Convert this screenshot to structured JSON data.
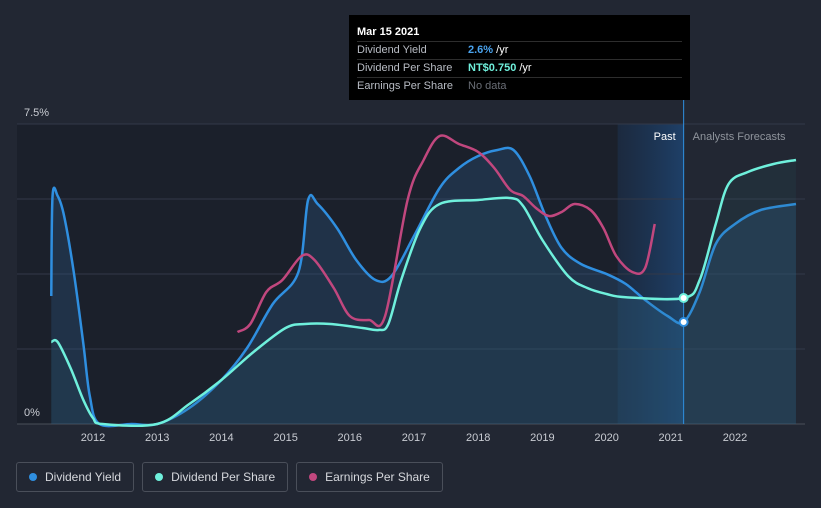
{
  "chart_data": {
    "type": "line",
    "title": "",
    "xlabel": "",
    "ylabel": "",
    "x_ticks": [
      "2012",
      "2013",
      "2014",
      "2015",
      "2016",
      "2017",
      "2018",
      "2019",
      "2020",
      "2021",
      "2022"
    ],
    "y_tick_labels": [
      "7.5%",
      "0%"
    ],
    "ylim": [
      0,
      7.5
    ],
    "xlim": [
      2011.3,
      2022.95
    ],
    "cursor_x": 2021.2,
    "past_label": "Past",
    "forecast_label": "Analysts Forecasts",
    "series": [
      {
        "name": "Dividend Yield",
        "color": "#2f8fe0",
        "axis": "yield",
        "points": [
          [
            2011.35,
            3.2
          ],
          [
            2011.37,
            5.7
          ],
          [
            2011.45,
            5.7
          ],
          [
            2011.55,
            5.2
          ],
          [
            2011.7,
            3.8
          ],
          [
            2011.85,
            2.0
          ],
          [
            2011.95,
            0.7
          ],
          [
            2012.1,
            0.0
          ],
          [
            2012.6,
            0.0
          ],
          [
            2013.0,
            0.0
          ],
          [
            2013.5,
            0.4
          ],
          [
            2014.0,
            1.1
          ],
          [
            2014.4,
            1.9
          ],
          [
            2014.8,
            3.0
          ],
          [
            2015.2,
            3.8
          ],
          [
            2015.35,
            5.6
          ],
          [
            2015.5,
            5.5
          ],
          [
            2015.8,
            4.9
          ],
          [
            2016.1,
            4.1
          ],
          [
            2016.4,
            3.6
          ],
          [
            2016.65,
            3.7
          ],
          [
            2017.0,
            4.7
          ],
          [
            2017.4,
            5.9
          ],
          [
            2017.7,
            6.4
          ],
          [
            2018.0,
            6.7
          ],
          [
            2018.3,
            6.85
          ],
          [
            2018.55,
            6.85
          ],
          [
            2018.8,
            6.2
          ],
          [
            2019.05,
            5.2
          ],
          [
            2019.3,
            4.4
          ],
          [
            2019.6,
            4.0
          ],
          [
            2020.0,
            3.75
          ],
          [
            2020.3,
            3.5
          ],
          [
            2020.6,
            3.1
          ],
          [
            2020.95,
            2.7
          ],
          [
            2021.2,
            2.55
          ],
          [
            2021.45,
            3.3
          ],
          [
            2021.7,
            4.5
          ],
          [
            2022.0,
            5.0
          ],
          [
            2022.4,
            5.35
          ],
          [
            2022.95,
            5.5
          ]
        ]
      },
      {
        "name": "Dividend Per Share",
        "color": "#6ff0dc",
        "axis": "dps",
        "points": [
          [
            2011.35,
            2.05
          ],
          [
            2011.45,
            2.05
          ],
          [
            2011.65,
            1.4
          ],
          [
            2011.85,
            0.6
          ],
          [
            2012.0,
            0.15
          ],
          [
            2012.15,
            0.0
          ],
          [
            2013.0,
            0.0
          ],
          [
            2013.5,
            0.5
          ],
          [
            2014.0,
            1.1
          ],
          [
            2014.5,
            1.8
          ],
          [
            2015.0,
            2.4
          ],
          [
            2015.3,
            2.5
          ],
          [
            2015.7,
            2.5
          ],
          [
            2016.2,
            2.4
          ],
          [
            2016.45,
            2.35
          ],
          [
            2016.6,
            2.5
          ],
          [
            2016.8,
            3.6
          ],
          [
            2017.1,
            4.9
          ],
          [
            2017.4,
            5.5
          ],
          [
            2018.0,
            5.6
          ],
          [
            2018.5,
            5.65
          ],
          [
            2018.7,
            5.45
          ],
          [
            2019.0,
            4.6
          ],
          [
            2019.4,
            3.7
          ],
          [
            2019.7,
            3.4
          ],
          [
            2020.0,
            3.25
          ],
          [
            2020.3,
            3.17
          ],
          [
            2021.2,
            3.15
          ],
          [
            2021.45,
            3.6
          ],
          [
            2021.7,
            5.0
          ],
          [
            2021.9,
            6.0
          ],
          [
            2022.2,
            6.3
          ],
          [
            2022.6,
            6.5
          ],
          [
            2022.95,
            6.6
          ]
        ]
      },
      {
        "name": "Earnings Per Share",
        "color": "#c1477e",
        "axis": "eps",
        "points": [
          [
            2014.25,
            2.3
          ],
          [
            2014.45,
            2.5
          ],
          [
            2014.7,
            3.3
          ],
          [
            2014.95,
            3.6
          ],
          [
            2015.25,
            4.2
          ],
          [
            2015.45,
            4.1
          ],
          [
            2015.75,
            3.4
          ],
          [
            2016.0,
            2.7
          ],
          [
            2016.3,
            2.6
          ],
          [
            2016.55,
            2.7
          ],
          [
            2016.9,
            5.6
          ],
          [
            2017.15,
            6.6
          ],
          [
            2017.4,
            7.2
          ],
          [
            2017.7,
            7.0
          ],
          [
            2018.0,
            6.8
          ],
          [
            2018.25,
            6.4
          ],
          [
            2018.5,
            5.85
          ],
          [
            2018.7,
            5.7
          ],
          [
            2018.9,
            5.4
          ],
          [
            2019.1,
            5.2
          ],
          [
            2019.3,
            5.3
          ],
          [
            2019.5,
            5.5
          ],
          [
            2019.75,
            5.35
          ],
          [
            2019.95,
            4.9
          ],
          [
            2020.15,
            4.2
          ],
          [
            2020.4,
            3.8
          ],
          [
            2020.6,
            3.9
          ],
          [
            2020.75,
            5.0
          ]
        ]
      }
    ],
    "markers": [
      {
        "series": "Dividend Yield",
        "x": 2021.2,
        "value": 2.55
      },
      {
        "series": "Dividend Per Share",
        "x": 2021.2,
        "value": 3.15
      }
    ]
  },
  "tooltip": {
    "date": "Mar 15 2021",
    "rows": [
      {
        "label": "Dividend Yield",
        "value": "2.6%",
        "unit": " /yr"
      },
      {
        "label": "Dividend Per Share",
        "value": "NT$0.750",
        "unit": " /yr"
      },
      {
        "label": "Earnings Per Share",
        "value": "No data",
        "unit": ""
      }
    ]
  },
  "legend": [
    {
      "label": "Dividend Yield",
      "color": "#2f8fe0"
    },
    {
      "label": "Dividend Per Share",
      "color": "#6ff0dc"
    },
    {
      "label": "Earnings Per Share",
      "color": "#c1477e"
    }
  ]
}
